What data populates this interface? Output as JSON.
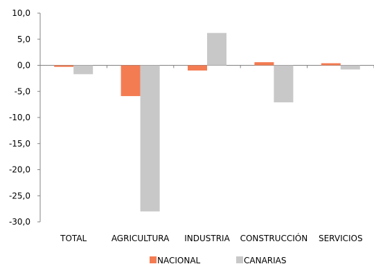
{
  "chart_data": {
    "type": "bar",
    "categories": [
      "TOTAL",
      "AGRICULTURA",
      "INDUSTRIA",
      "CONSTRUCCIÓN",
      "SERVICIOS"
    ],
    "series": [
      {
        "name": "NACIONAL",
        "color": "#f47c52",
        "values": [
          -0.3,
          -5.9,
          -1.0,
          0.6,
          0.4
        ]
      },
      {
        "name": "CANARIAS",
        "color": "#c8c8c8",
        "values": [
          -1.7,
          -28.0,
          6.2,
          -7.1,
          -0.8
        ]
      }
    ],
    "ylim": [
      -30,
      10
    ],
    "yticks": [
      10,
      5,
      0,
      -5,
      -10,
      -15,
      -20,
      -25,
      -30
    ],
    "ytick_labels": [
      "10,0",
      "5,0",
      "0,0",
      "-5,0",
      "-10,0",
      "-15,0",
      "-20,0",
      "-25,0",
      "-30,0"
    ],
    "legend_position": "bottom",
    "grid": false
  }
}
